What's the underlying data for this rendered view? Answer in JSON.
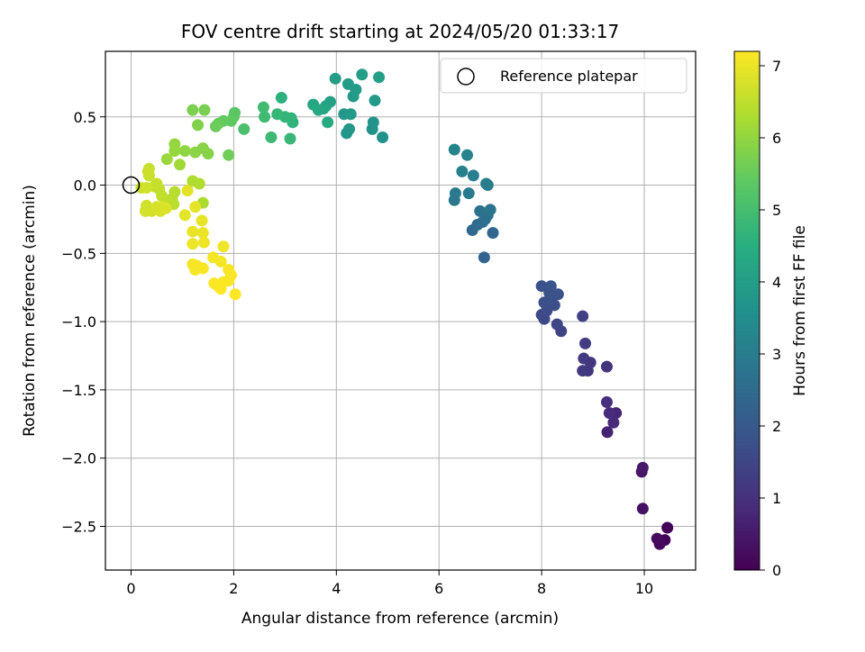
{
  "chart_data": {
    "type": "scatter",
    "title": "FOV centre drift starting at 2024/05/20 01:33:17",
    "xlabel": "Angular distance from reference (arcmin)",
    "ylabel": "Rotation from reference (arcmin)",
    "xlim": [
      -0.5,
      11.0
    ],
    "ylim": [
      -2.82,
      0.98
    ],
    "xticks": [
      0,
      2,
      4,
      6,
      8,
      10
    ],
    "xtick_labels": [
      "0",
      "2",
      "4",
      "6",
      "8",
      "10"
    ],
    "yticks": [
      0.5,
      0.0,
      -0.5,
      -1.0,
      -1.5,
      -2.0,
      -2.5
    ],
    "ytick_labels": [
      "0.5",
      "0.0",
      "−0.5",
      "−1.0",
      "−1.5",
      "−2.0",
      "−2.5"
    ],
    "grid": true,
    "legend": {
      "label": "Reference platepar",
      "position": "top-right",
      "marker": "open-circle"
    },
    "reference_point": {
      "x": 0.0,
      "y": 0.0
    },
    "colorbar": {
      "label": "Hours from first FF file",
      "colormap": "viridis",
      "range": [
        0,
        7.2
      ],
      "ticks": [
        0,
        1,
        2,
        3,
        4,
        5,
        6,
        7
      ],
      "tick_labels": [
        "0",
        "1",
        "2",
        "3",
        "4",
        "5",
        "6",
        "7"
      ]
    },
    "points": [
      {
        "x": 10.45,
        "y": -2.51,
        "c": 0.05
      },
      {
        "x": 10.4,
        "y": -2.6,
        "c": 0.1
      },
      {
        "x": 10.3,
        "y": -2.63,
        "c": 0.15
      },
      {
        "x": 10.25,
        "y": -2.59,
        "c": 0.2
      },
      {
        "x": 9.97,
        "y": -2.37,
        "c": 0.35
      },
      {
        "x": 9.95,
        "y": -2.1,
        "c": 0.45
      },
      {
        "x": 9.97,
        "y": -2.07,
        "c": 0.5
      },
      {
        "x": 9.28,
        "y": -1.81,
        "c": 0.7
      },
      {
        "x": 9.45,
        "y": -1.67,
        "c": 0.8
      },
      {
        "x": 9.4,
        "y": -1.74,
        "c": 0.85
      },
      {
        "x": 9.32,
        "y": -1.67,
        "c": 0.9
      },
      {
        "x": 9.27,
        "y": -1.59,
        "c": 0.95
      },
      {
        "x": 9.27,
        "y": -1.33,
        "c": 1.05
      },
      {
        "x": 8.9,
        "y": -1.36,
        "c": 1.1
      },
      {
        "x": 8.95,
        "y": -1.3,
        "c": 1.15
      },
      {
        "x": 8.8,
        "y": -1.36,
        "c": 1.2
      },
      {
        "x": 8.82,
        "y": -1.27,
        "c": 1.25
      },
      {
        "x": 8.85,
        "y": -1.16,
        "c": 1.3
      },
      {
        "x": 8.8,
        "y": -0.96,
        "c": 1.35
      },
      {
        "x": 8.38,
        "y": -1.07,
        "c": 1.45
      },
      {
        "x": 8.3,
        "y": -1.02,
        "c": 1.5
      },
      {
        "x": 8.05,
        "y": -0.98,
        "c": 1.55
      },
      {
        "x": 8.0,
        "y": -0.95,
        "c": 1.6
      },
      {
        "x": 8.1,
        "y": -0.92,
        "c": 1.65
      },
      {
        "x": 8.25,
        "y": -0.88,
        "c": 1.7
      },
      {
        "x": 8.05,
        "y": -0.86,
        "c": 1.72
      },
      {
        "x": 8.15,
        "y": -0.84,
        "c": 1.75
      },
      {
        "x": 8.32,
        "y": -0.8,
        "c": 1.8
      },
      {
        "x": 8.15,
        "y": -0.79,
        "c": 1.82
      },
      {
        "x": 8.0,
        "y": -0.74,
        "c": 1.85
      },
      {
        "x": 8.18,
        "y": -0.74,
        "c": 1.88
      },
      {
        "x": 6.88,
        "y": -0.53,
        "c": 2.3
      },
      {
        "x": 7.05,
        "y": -0.35,
        "c": 2.4
      },
      {
        "x": 6.65,
        "y": -0.33,
        "c": 2.45
      },
      {
        "x": 6.75,
        "y": -0.29,
        "c": 2.5
      },
      {
        "x": 6.85,
        "y": -0.27,
        "c": 2.55
      },
      {
        "x": 6.9,
        "y": -0.25,
        "c": 2.6
      },
      {
        "x": 6.95,
        "y": -0.22,
        "c": 2.65
      },
      {
        "x": 6.8,
        "y": -0.19,
        "c": 2.7
      },
      {
        "x": 7.0,
        "y": -0.18,
        "c": 2.75
      },
      {
        "x": 6.3,
        "y": -0.11,
        "c": 2.85
      },
      {
        "x": 6.32,
        "y": -0.06,
        "c": 2.9
      },
      {
        "x": 6.58,
        "y": -0.06,
        "c": 2.92
      },
      {
        "x": 6.95,
        "y": 0.0,
        "c": 2.95
      },
      {
        "x": 6.92,
        "y": 0.01,
        "c": 3.0
      },
      {
        "x": 6.67,
        "y": 0.07,
        "c": 3.05
      },
      {
        "x": 6.45,
        "y": 0.1,
        "c": 3.1
      },
      {
        "x": 6.55,
        "y": 0.22,
        "c": 3.15
      },
      {
        "x": 6.3,
        "y": 0.26,
        "c": 3.2
      },
      {
        "x": 4.9,
        "y": 0.35,
        "c": 3.6
      },
      {
        "x": 4.7,
        "y": 0.41,
        "c": 3.65
      },
      {
        "x": 4.72,
        "y": 0.46,
        "c": 3.7
      },
      {
        "x": 4.2,
        "y": 0.38,
        "c": 3.75
      },
      {
        "x": 4.25,
        "y": 0.41,
        "c": 3.8
      },
      {
        "x": 4.15,
        "y": 0.52,
        "c": 3.82
      },
      {
        "x": 4.28,
        "y": 0.52,
        "c": 3.85
      },
      {
        "x": 4.75,
        "y": 0.62,
        "c": 3.88
      },
      {
        "x": 4.33,
        "y": 0.65,
        "c": 3.9
      },
      {
        "x": 4.38,
        "y": 0.7,
        "c": 3.92
      },
      {
        "x": 4.23,
        "y": 0.74,
        "c": 3.95
      },
      {
        "x": 3.98,
        "y": 0.78,
        "c": 3.97
      },
      {
        "x": 4.5,
        "y": 0.81,
        "c": 4.0
      },
      {
        "x": 4.83,
        "y": 0.79,
        "c": 4.02
      },
      {
        "x": 3.88,
        "y": 0.61,
        "c": 4.1
      },
      {
        "x": 3.8,
        "y": 0.58,
        "c": 4.15
      },
      {
        "x": 3.75,
        "y": 0.56,
        "c": 4.2
      },
      {
        "x": 3.55,
        "y": 0.59,
        "c": 4.25
      },
      {
        "x": 3.65,
        "y": 0.55,
        "c": 4.3
      },
      {
        "x": 3.83,
        "y": 0.46,
        "c": 4.35
      },
      {
        "x": 2.93,
        "y": 0.64,
        "c": 4.55
      },
      {
        "x": 3.12,
        "y": 0.49,
        "c": 4.6
      },
      {
        "x": 3.15,
        "y": 0.46,
        "c": 4.65
      },
      {
        "x": 3.0,
        "y": 0.5,
        "c": 4.7
      },
      {
        "x": 2.85,
        "y": 0.52,
        "c": 4.75
      },
      {
        "x": 3.1,
        "y": 0.34,
        "c": 4.8
      },
      {
        "x": 2.73,
        "y": 0.35,
        "c": 4.85
      },
      {
        "x": 2.6,
        "y": 0.5,
        "c": 4.9
      },
      {
        "x": 2.58,
        "y": 0.57,
        "c": 4.95
      },
      {
        "x": 2.2,
        "y": 0.41,
        "c": 5.1
      },
      {
        "x": 2.02,
        "y": 0.53,
        "c": 5.3
      },
      {
        "x": 2.0,
        "y": 0.5,
        "c": 5.35
      },
      {
        "x": 1.95,
        "y": 0.47,
        "c": 5.4
      },
      {
        "x": 1.8,
        "y": 0.47,
        "c": 5.45
      },
      {
        "x": 1.7,
        "y": 0.45,
        "c": 5.5
      },
      {
        "x": 1.65,
        "y": 0.43,
        "c": 5.55
      },
      {
        "x": 1.9,
        "y": 0.22,
        "c": 5.6
      },
      {
        "x": 1.43,
        "y": 0.55,
        "c": 5.7
      },
      {
        "x": 1.2,
        "y": 0.55,
        "c": 5.75
      },
      {
        "x": 1.3,
        "y": 0.44,
        "c": 5.8
      },
      {
        "x": 1.5,
        "y": 0.23,
        "c": 5.85
      },
      {
        "x": 1.4,
        "y": 0.27,
        "c": 5.88
      },
      {
        "x": 1.25,
        "y": 0.24,
        "c": 5.9
      },
      {
        "x": 1.05,
        "y": 0.25,
        "c": 5.95
      },
      {
        "x": 0.85,
        "y": 0.3,
        "c": 6.0
      },
      {
        "x": 0.85,
        "y": 0.25,
        "c": 6.05
      },
      {
        "x": 0.7,
        "y": 0.19,
        "c": 6.1
      },
      {
        "x": 0.95,
        "y": 0.15,
        "c": 6.15
      },
      {
        "x": 1.4,
        "y": -0.13,
        "c": 6.3
      },
      {
        "x": 1.2,
        "y": 0.03,
        "c": 6.32
      },
      {
        "x": 1.33,
        "y": 0.01,
        "c": 6.35
      },
      {
        "x": 0.85,
        "y": -0.05,
        "c": 6.4
      },
      {
        "x": 0.8,
        "y": -0.1,
        "c": 6.42
      },
      {
        "x": 0.83,
        "y": -0.14,
        "c": 6.45
      },
      {
        "x": 0.75,
        "y": -0.12,
        "c": 6.48
      },
      {
        "x": 0.6,
        "y": -0.08,
        "c": 6.5
      },
      {
        "x": 0.55,
        "y": -0.03,
        "c": 6.52
      },
      {
        "x": 0.45,
        "y": -0.01,
        "c": 6.55
      },
      {
        "x": 0.5,
        "y": 0.01,
        "c": 6.58
      },
      {
        "x": 0.35,
        "y": 0.07,
        "c": 6.6
      },
      {
        "x": 0.33,
        "y": 0.1,
        "c": 6.62
      },
      {
        "x": 0.35,
        "y": 0.12,
        "c": 6.64
      },
      {
        "x": 0.2,
        "y": -0.02,
        "c": 6.66
      },
      {
        "x": 0.3,
        "y": -0.02,
        "c": 6.68
      },
      {
        "x": 0.3,
        "y": -0.15,
        "c": 6.7
      },
      {
        "x": 0.28,
        "y": -0.19,
        "c": 6.72
      },
      {
        "x": 0.4,
        "y": -0.19,
        "c": 6.74
      },
      {
        "x": 0.5,
        "y": -0.16,
        "c": 6.76
      },
      {
        "x": 0.62,
        "y": -0.16,
        "c": 6.78
      },
      {
        "x": 0.57,
        "y": -0.19,
        "c": 6.8
      },
      {
        "x": 0.68,
        "y": -0.17,
        "c": 6.82
      },
      {
        "x": 1.1,
        "y": -0.04,
        "c": 6.9
      },
      {
        "x": 1.05,
        "y": -0.22,
        "c": 6.92
      },
      {
        "x": 1.25,
        "y": -0.16,
        "c": 6.94
      },
      {
        "x": 1.38,
        "y": -0.26,
        "c": 6.96
      },
      {
        "x": 1.2,
        "y": -0.34,
        "c": 6.98
      },
      {
        "x": 1.4,
        "y": -0.35,
        "c": 7.0
      },
      {
        "x": 1.2,
        "y": -0.43,
        "c": 7.02
      },
      {
        "x": 1.42,
        "y": -0.42,
        "c": 7.04
      },
      {
        "x": 1.8,
        "y": -0.45,
        "c": 7.06
      },
      {
        "x": 1.6,
        "y": -0.53,
        "c": 7.08
      },
      {
        "x": 1.75,
        "y": -0.56,
        "c": 7.09
      },
      {
        "x": 1.2,
        "y": -0.58,
        "c": 7.1
      },
      {
        "x": 1.28,
        "y": -0.59,
        "c": 7.11
      },
      {
        "x": 1.4,
        "y": -0.61,
        "c": 7.12
      },
      {
        "x": 1.25,
        "y": -0.62,
        "c": 7.13
      },
      {
        "x": 1.9,
        "y": -0.62,
        "c": 7.14
      },
      {
        "x": 1.95,
        "y": -0.66,
        "c": 7.15
      },
      {
        "x": 1.9,
        "y": -0.7,
        "c": 7.16
      },
      {
        "x": 1.8,
        "y": -0.71,
        "c": 7.17
      },
      {
        "x": 1.62,
        "y": -0.72,
        "c": 7.18
      },
      {
        "x": 1.7,
        "y": -0.74,
        "c": 7.19
      },
      {
        "x": 1.75,
        "y": -0.76,
        "c": 7.19
      },
      {
        "x": 2.03,
        "y": -0.8,
        "c": 7.2
      }
    ]
  }
}
